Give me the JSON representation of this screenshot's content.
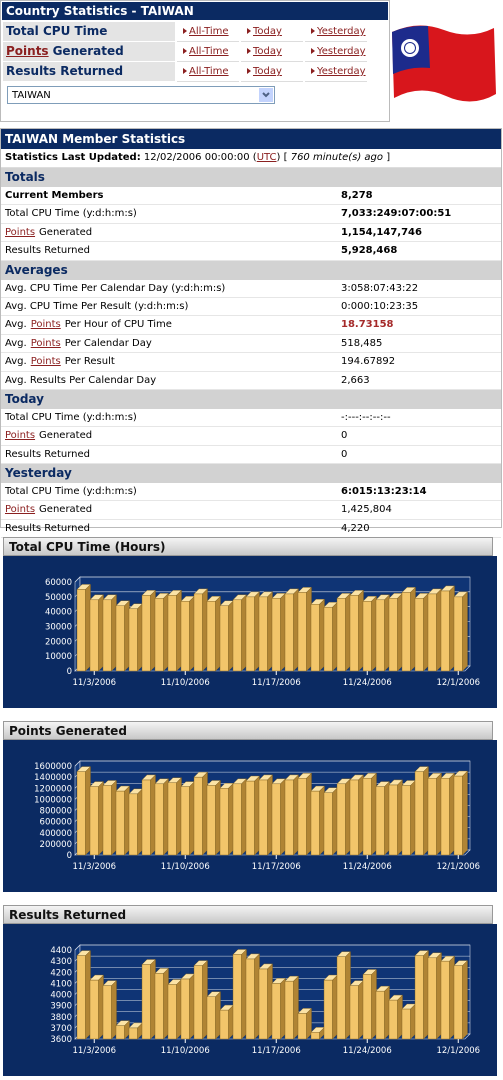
{
  "header": {
    "title": "Country Statistics - TAIWAN",
    "rows": [
      {
        "label": "Total CPU Time",
        "links": [
          "All-Time",
          "Today",
          "Yesterday"
        ]
      },
      {
        "link": "Points",
        "label": "Generated",
        "links": [
          "All-Time",
          "Today",
          "Yesterday"
        ]
      },
      {
        "label": "Results Returned",
        "links": [
          "All-Time",
          "Today",
          "Yesterday"
        ]
      }
    ],
    "select": "TAIWAN"
  },
  "member_stats": {
    "title": "TAIWAN Member Statistics",
    "updated": {
      "label": "Statistics Last Updated:",
      "time": "12/02/2006 00:00:00 (",
      "utc": "UTC",
      "mid": ") [",
      "ago": "760 minute(s) ago",
      "end": "]"
    },
    "sections": [
      {
        "title": "Totals",
        "rows": [
          {
            "label": "Current Members",
            "label_bold": true,
            "value": "8,278",
            "value_bold": true
          },
          {
            "label": "Total CPU Time (y:d:h:m:s)",
            "value": "7,033:249:07:00:51",
            "value_bold": true
          },
          {
            "link": "Points",
            "label": "Generated",
            "value": "1,154,147,746",
            "value_bold": true
          },
          {
            "label": "Results Returned",
            "value": "5,928,468",
            "value_bold": true
          }
        ]
      },
      {
        "title": "Averages",
        "rows": [
          {
            "label": "Avg. CPU Time Per Calendar Day (y:d:h:m:s)",
            "value": "3:058:07:43:22"
          },
          {
            "label": "Avg. CPU Time Per Result (y:d:h:m:s)",
            "value": "0:000:10:23:35"
          },
          {
            "pre": "Avg.",
            "link": "Points",
            "label": "Per Hour of CPU Time",
            "value": "18.73158",
            "value_bold": true,
            "value_red": true
          },
          {
            "pre": "Avg.",
            "link": "Points",
            "label": "Per Calendar Day",
            "value": "518,485"
          },
          {
            "pre": "Avg.",
            "link": "Points",
            "label": "Per Result",
            "value": "194.67892"
          },
          {
            "label": "Avg. Results Per Calendar Day",
            "value": "2,663"
          }
        ]
      },
      {
        "title": "Today",
        "rows": [
          {
            "label": "Total CPU Time (y:d:h:m:s)",
            "value": "-:---:--:--:--"
          },
          {
            "link": "Points",
            "label": "Generated",
            "value": "0"
          },
          {
            "label": "Results Returned",
            "value": "0"
          }
        ]
      },
      {
        "title": "Yesterday",
        "rows": [
          {
            "label": "Total CPU Time (y:d:h:m:s)",
            "value": "6:015:13:23:14",
            "value_bold": true
          },
          {
            "link": "Points",
            "label": "Generated",
            "value": "1,425,804"
          },
          {
            "label": "Results Returned",
            "value": "4,220"
          }
        ]
      }
    ]
  },
  "chart_data": [
    {
      "type": "bar3d",
      "title": "Total CPU Time (Hours)",
      "color": "#f2c56a",
      "categories": [
        null,
        "11/3/2006",
        null,
        null,
        null,
        null,
        null,
        null,
        "11/10/2006",
        null,
        null,
        null,
        null,
        null,
        null,
        "11/17/2006",
        null,
        null,
        null,
        null,
        null,
        null,
        "11/24/2006",
        null,
        null,
        null,
        null,
        null,
        null,
        "12/1/2006"
      ],
      "values": [
        55000,
        48000,
        48000,
        44000,
        42000,
        51000,
        49000,
        51000,
        47000,
        52000,
        47000,
        44000,
        48000,
        50000,
        50000,
        49000,
        52000,
        53000,
        45000,
        43000,
        49000,
        51000,
        47000,
        48000,
        49000,
        53000,
        49000,
        52000,
        54000,
        50000
      ],
      "ylim": [
        0,
        60000
      ],
      "yticks": [
        0,
        10000,
        20000,
        30000,
        40000,
        50000,
        60000
      ],
      "grid": true
    },
    {
      "type": "bar3d",
      "title": "Points Generated",
      "color": "#f2c56a",
      "categories": [
        null,
        "11/3/2006",
        null,
        null,
        null,
        null,
        null,
        null,
        "11/10/2006",
        null,
        null,
        null,
        null,
        null,
        null,
        "11/17/2006",
        null,
        null,
        null,
        null,
        null,
        null,
        "11/24/2006",
        null,
        null,
        null,
        null,
        null,
        null,
        "12/1/2006"
      ],
      "values": [
        1500000,
        1230000,
        1250000,
        1150000,
        1100000,
        1350000,
        1280000,
        1300000,
        1230000,
        1400000,
        1250000,
        1200000,
        1280000,
        1330000,
        1350000,
        1280000,
        1350000,
        1380000,
        1150000,
        1120000,
        1280000,
        1350000,
        1380000,
        1230000,
        1260000,
        1250000,
        1500000,
        1380000,
        1380000,
        1420000
      ],
      "ylim": [
        0,
        1600000
      ],
      "yticks": [
        0,
        200000,
        400000,
        600000,
        800000,
        1000000,
        1200000,
        1400000,
        1600000
      ],
      "grid": true
    },
    {
      "type": "bar3d",
      "title": "Results Returned",
      "color": "#f2c56a",
      "categories": [
        null,
        "11/3/2006",
        null,
        null,
        null,
        null,
        null,
        null,
        "11/10/2006",
        null,
        null,
        null,
        null,
        null,
        null,
        "11/17/2006",
        null,
        null,
        null,
        null,
        null,
        null,
        "11/24/2006",
        null,
        null,
        null,
        null,
        null,
        null,
        "12/1/2006"
      ],
      "values": [
        4350,
        4130,
        4080,
        3720,
        3700,
        4270,
        4190,
        4090,
        4140,
        4260,
        3980,
        3860,
        4360,
        4320,
        4230,
        4100,
        4120,
        3830,
        3660,
        4130,
        4340,
        4080,
        4180,
        4030,
        3950,
        3870,
        4350,
        4330,
        4300,
        4260
      ],
      "ylim": [
        3600,
        4400
      ],
      "yticks": [
        3600,
        3700,
        3800,
        3900,
        4000,
        4100,
        4200,
        4300,
        4400
      ],
      "grid": true
    }
  ]
}
